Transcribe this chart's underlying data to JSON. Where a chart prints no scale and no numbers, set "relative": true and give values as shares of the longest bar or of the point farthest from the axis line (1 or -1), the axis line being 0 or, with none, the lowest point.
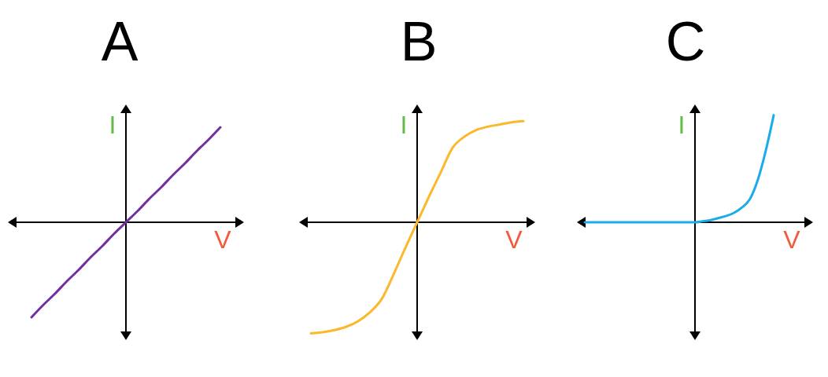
{
  "chart_data": [
    {
      "type": "line",
      "title": "A",
      "xlabel": "V",
      "ylabel": "I",
      "relative": true,
      "color": "#7030a0",
      "categories": [
        null,
        null,
        null,
        null,
        null,
        null,
        null,
        null,
        null,
        null,
        null,
        null,
        null,
        null,
        null,
        null,
        null,
        null,
        null,
        null,
        null
      ],
      "values": [
        null,
        null,
        -1,
        -0.87,
        -0.75,
        -0.62,
        -0.5,
        -0.37,
        -0.25,
        -0.12,
        0,
        0.12,
        0.25,
        0.37,
        0.5,
        0.62,
        0.75,
        0.87,
        1,
        null,
        null
      ]
    },
    {
      "type": "line",
      "title": "B",
      "xlabel": "V",
      "ylabel": "I",
      "relative": true,
      "color": "#fbb82b",
      "categories": [
        null,
        null,
        null,
        null,
        null,
        null,
        null,
        null,
        null,
        null,
        null,
        null,
        null,
        null,
        null,
        null,
        null,
        null,
        null,
        null,
        null
      ],
      "values": [
        null,
        -1,
        -0.99,
        -0.97,
        -0.94,
        -0.89,
        -0.81,
        -0.69,
        -0.47,
        -0.23,
        0,
        0.23,
        0.45,
        0.67,
        0.77,
        0.83,
        0.86,
        0.88,
        0.9,
        0.91,
        null
      ]
    },
    {
      "type": "line",
      "title": "C",
      "xlabel": "V",
      "ylabel": "I",
      "relative": true,
      "color": "#1aace8",
      "categories": [
        null,
        null,
        null,
        null,
        null,
        null,
        null,
        null,
        null,
        null,
        null,
        null,
        null,
        null,
        null,
        null,
        null,
        null,
        null,
        null,
        null,
        null,
        null,
        null,
        null,
        null,
        null,
        null,
        null,
        null,
        null
      ],
      "values": [
        null,
        0,
        0,
        0,
        0,
        0,
        0,
        0,
        0,
        0,
        0,
        0,
        0,
        0,
        0,
        0,
        0.01,
        0.02,
        0.04,
        0.06,
        0.09,
        0.14,
        0.22,
        0.4,
        0.67,
        1,
        null,
        null,
        null,
        null,
        null
      ]
    }
  ]
}
